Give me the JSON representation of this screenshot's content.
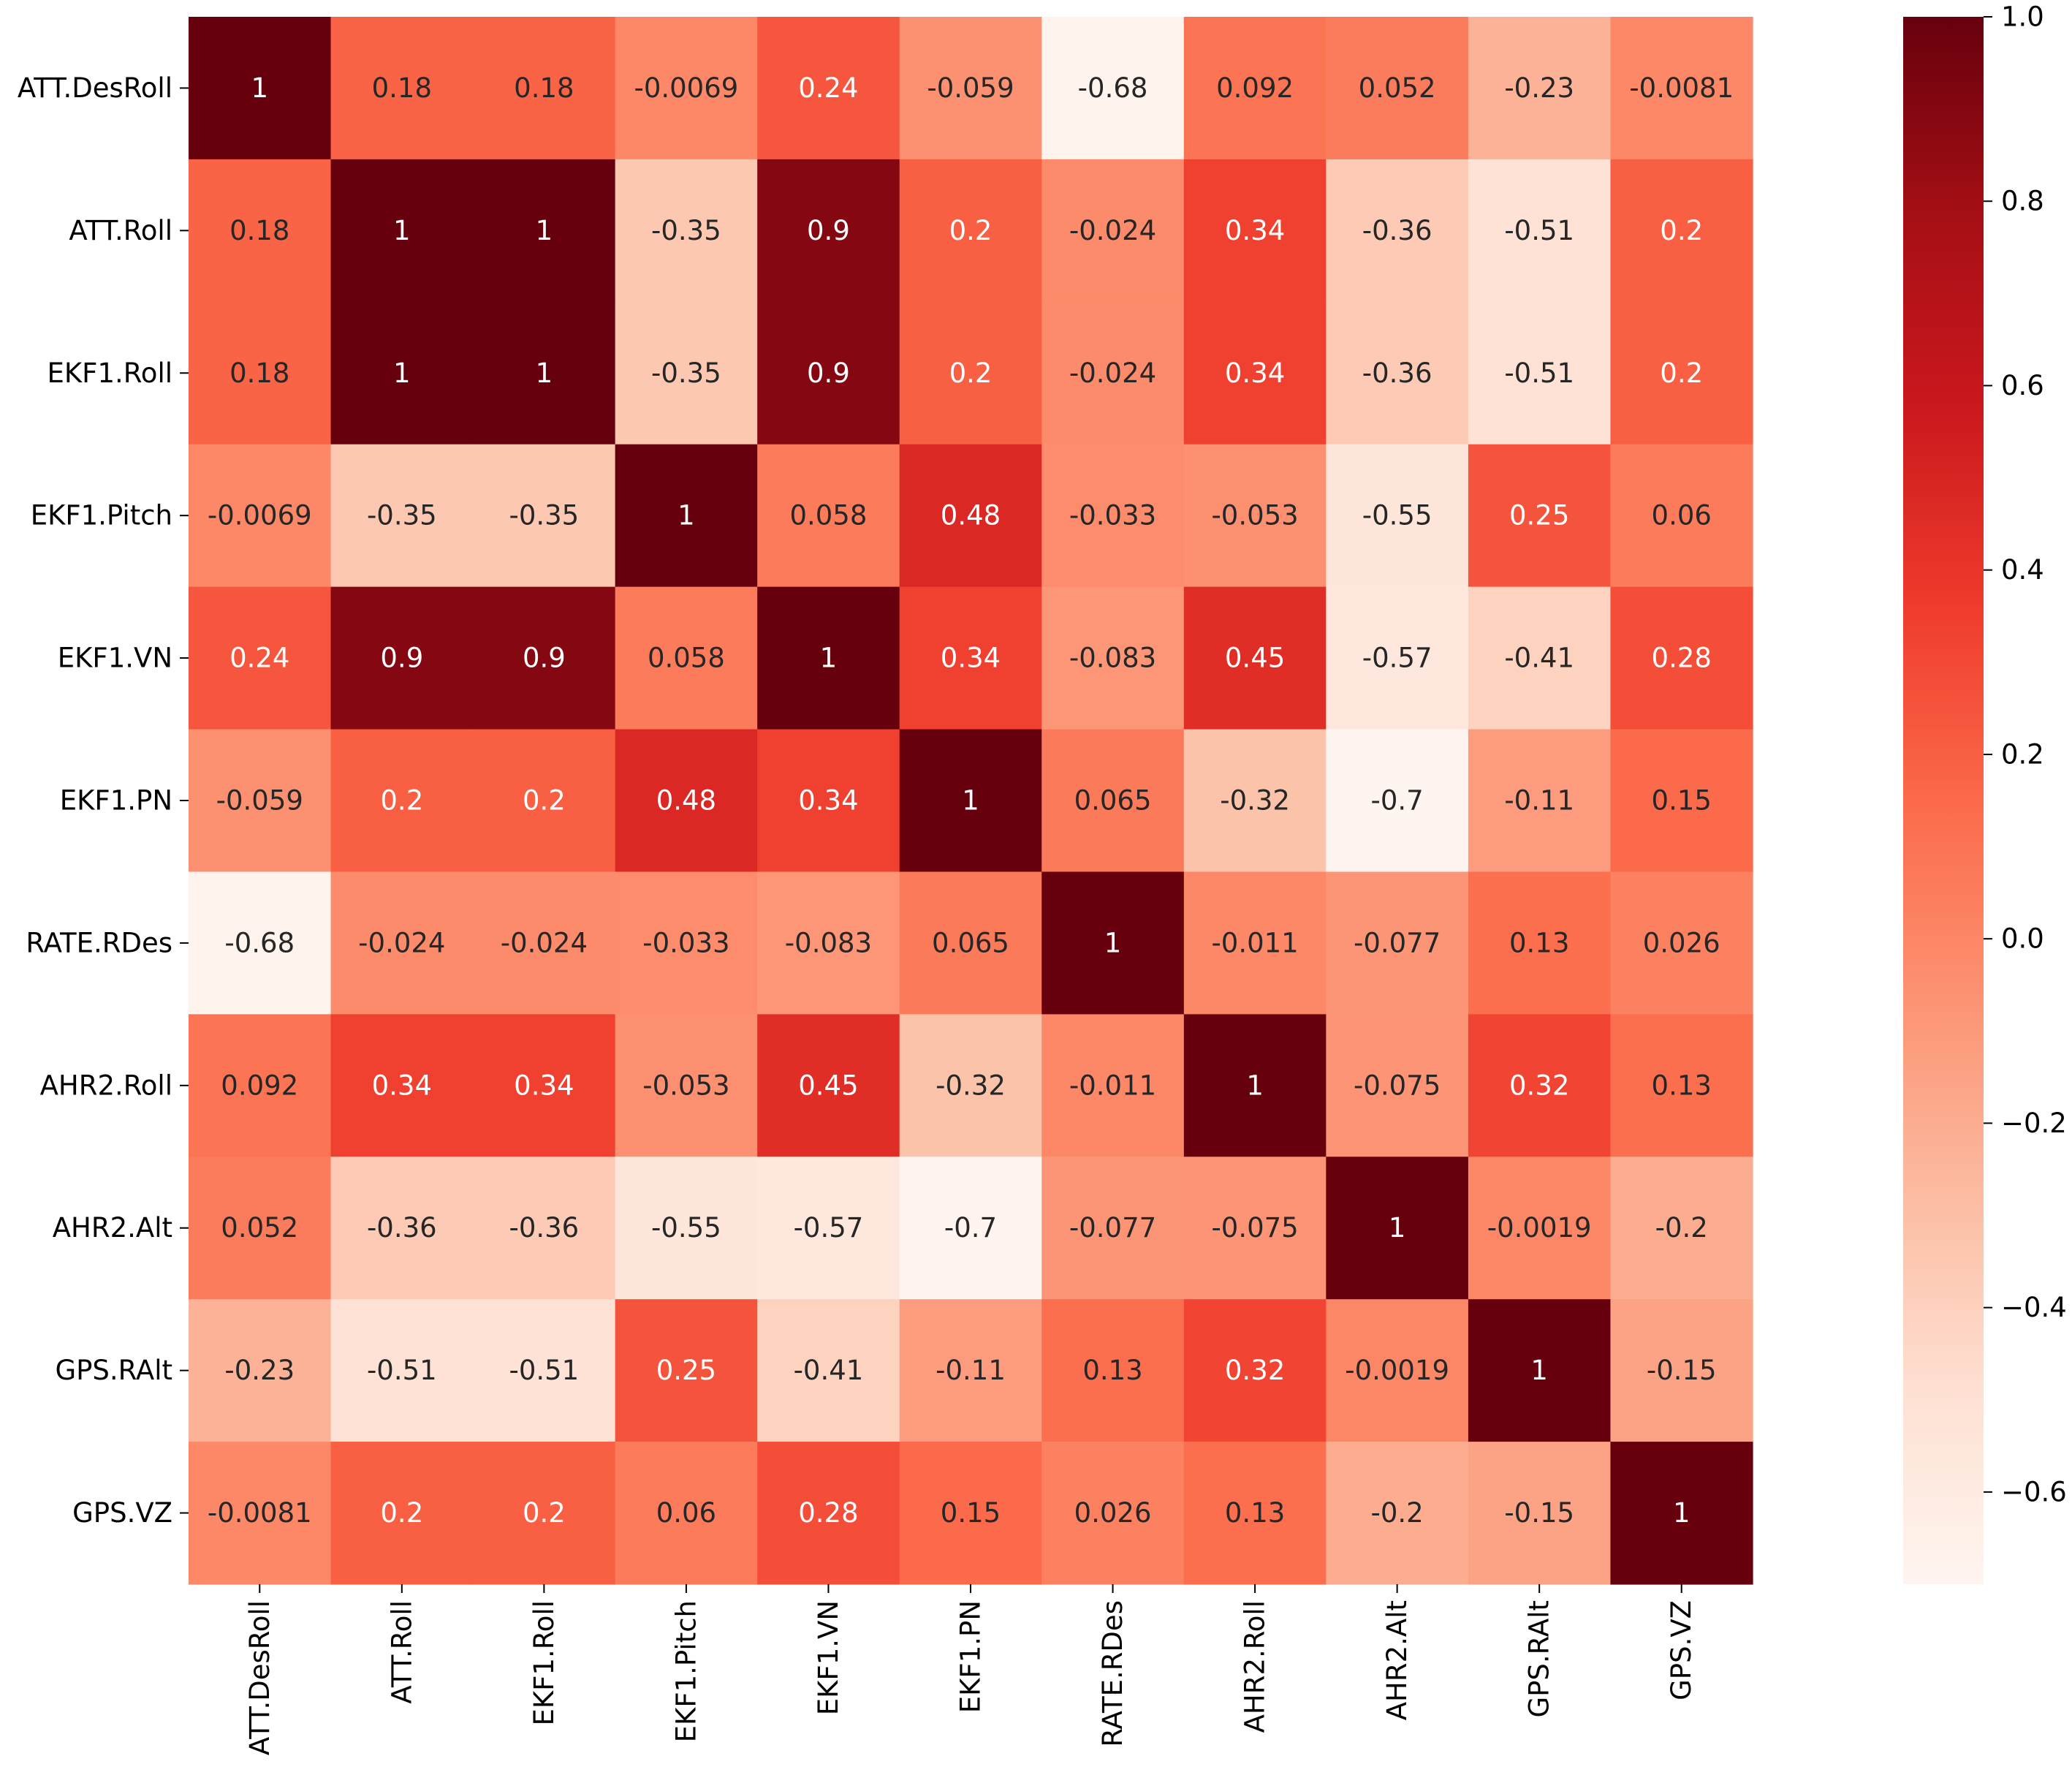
{
  "chart_data": {
    "type": "heatmap",
    "title": "",
    "xlabel": "",
    "ylabel": "",
    "colormap": "Reds",
    "colormap_stops": [
      "#fff5f0",
      "#fee0d2",
      "#fcbba1",
      "#fc9272",
      "#fb6a4a",
      "#ef3b2c",
      "#cb181d",
      "#a50f15",
      "#67000d"
    ],
    "vmin": -0.7,
    "vmax": 1.0,
    "labels": [
      "ATT.DesRoll",
      "ATT.Roll",
      "EKF1.Roll",
      "EKF1.Pitch",
      "EKF1.VN",
      "EKF1.PN",
      "RATE.RDes",
      "AHR2.Roll",
      "AHR2.Alt",
      "GPS.RAlt",
      "GPS.VZ"
    ],
    "matrix": [
      [
        1,
        0.18,
        0.18,
        -0.0069,
        0.24,
        -0.059,
        -0.68,
        0.092,
        0.052,
        -0.23,
        -0.0081
      ],
      [
        0.18,
        1,
        1,
        -0.35,
        0.9,
        0.2,
        -0.024,
        0.34,
        -0.36,
        -0.51,
        0.2
      ],
      [
        0.18,
        1,
        1,
        -0.35,
        0.9,
        0.2,
        -0.024,
        0.34,
        -0.36,
        -0.51,
        0.2
      ],
      [
        -0.0069,
        -0.35,
        -0.35,
        1,
        0.058,
        0.48,
        -0.033,
        -0.053,
        -0.55,
        0.25,
        0.06
      ],
      [
        0.24,
        0.9,
        0.9,
        0.058,
        1,
        0.34,
        -0.083,
        0.45,
        -0.57,
        -0.41,
        0.28
      ],
      [
        -0.059,
        0.2,
        0.2,
        0.48,
        0.34,
        1,
        0.065,
        -0.32,
        -0.7,
        -0.11,
        0.15
      ],
      [
        -0.68,
        -0.024,
        -0.024,
        -0.033,
        -0.083,
        0.065,
        1,
        -0.011,
        -0.077,
        0.13,
        0.026
      ],
      [
        0.092,
        0.34,
        0.34,
        -0.053,
        0.45,
        -0.32,
        -0.011,
        1,
        -0.075,
        0.32,
        0.13
      ],
      [
        0.052,
        -0.36,
        -0.36,
        -0.55,
        -0.57,
        -0.7,
        -0.077,
        -0.075,
        1,
        -0.0019,
        -0.2
      ],
      [
        -0.23,
        -0.51,
        -0.51,
        0.25,
        -0.41,
        -0.11,
        0.13,
        0.32,
        -0.0019,
        1,
        -0.15
      ],
      [
        -0.0081,
        0.2,
        0.2,
        0.06,
        0.28,
        0.15,
        0.026,
        0.13,
        -0.2,
        -0.15,
        1
      ]
    ],
    "colorbar": {
      "ticks": [
        1.0,
        0.8,
        0.6,
        0.4,
        0.2,
        0.0,
        -0.2,
        -0.4,
        -0.6
      ],
      "tick_labels": [
        "1.0",
        "0.8",
        "0.6",
        "0.4",
        "0.2",
        "0.0",
        "−0.2",
        "−0.4",
        "−0.6"
      ],
      "placement": "right"
    },
    "grid": false,
    "annotations": true
  }
}
